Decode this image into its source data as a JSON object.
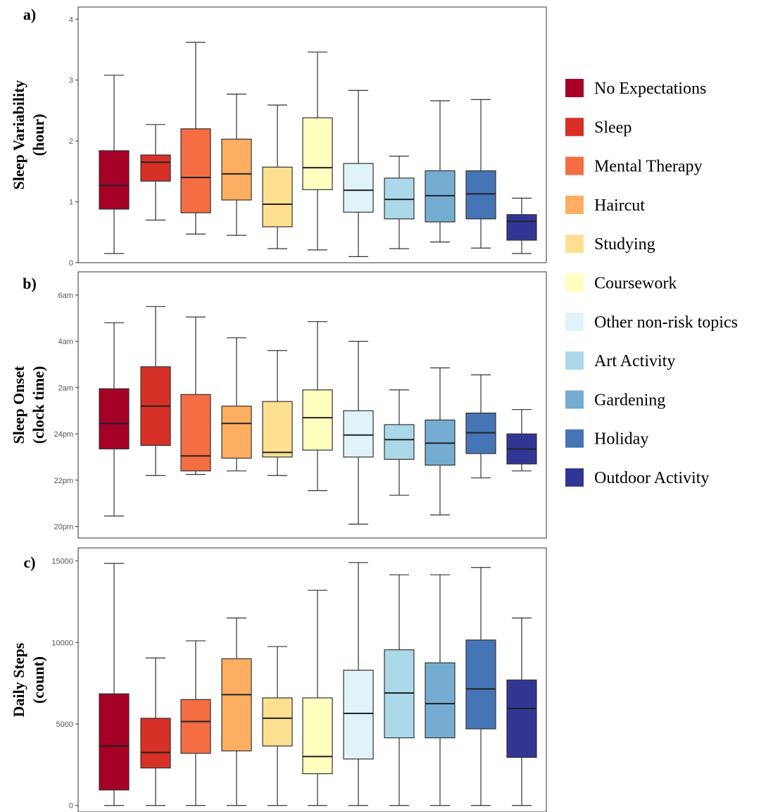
{
  "chart_data": [
    {
      "type": "box",
      "panel_label": "a)",
      "ylabel_lines": [
        "Sleep Variability",
        "(hour)"
      ],
      "ylim": [
        0,
        4.2
      ],
      "ticks": [
        {
          "value": 0,
          "label": "0"
        },
        {
          "value": 1,
          "label": "1"
        },
        {
          "value": 2,
          "label": "2"
        },
        {
          "value": 3,
          "label": "3"
        },
        {
          "value": 4,
          "label": "4"
        }
      ],
      "boxes": [
        {
          "category": "No Expectations",
          "min": 0.15,
          "q1": 0.88,
          "median": 1.27,
          "q3": 1.84,
          "max": 3.08
        },
        {
          "category": "Sleep",
          "min": 0.7,
          "q1": 1.34,
          "median": 1.65,
          "q3": 1.77,
          "max": 2.27
        },
        {
          "category": "Mental Therapy",
          "min": 0.47,
          "q1": 0.82,
          "median": 1.4,
          "q3": 2.2,
          "max": 3.62
        },
        {
          "category": "Haircut",
          "min": 0.45,
          "q1": 1.03,
          "median": 1.46,
          "q3": 2.03,
          "max": 2.77
        },
        {
          "category": "Studying",
          "min": 0.23,
          "q1": 0.59,
          "median": 0.96,
          "q3": 1.57,
          "max": 2.59
        },
        {
          "category": "Coursework",
          "min": 0.21,
          "q1": 1.2,
          "median": 1.56,
          "q3": 2.38,
          "max": 3.46
        },
        {
          "category": "Other non-risk topics",
          "min": 0.1,
          "q1": 0.83,
          "median": 1.19,
          "q3": 1.63,
          "max": 2.83
        },
        {
          "category": "Art Activity",
          "min": 0.23,
          "q1": 0.72,
          "median": 1.04,
          "q3": 1.39,
          "max": 1.75
        },
        {
          "category": "Gardening",
          "min": 0.34,
          "q1": 0.67,
          "median": 1.1,
          "q3": 1.51,
          "max": 2.66
        },
        {
          "category": "Holiday",
          "min": 0.24,
          "q1": 0.72,
          "median": 1.13,
          "q3": 1.51,
          "max": 2.68
        },
        {
          "category": "Outdoor Activity",
          "min": 0.15,
          "q1": 0.37,
          "median": 0.68,
          "q3": 0.79,
          "max": 1.06
        }
      ]
    },
    {
      "type": "box",
      "panel_label": "b)",
      "ylabel_lines": [
        "Sleep Onset",
        "(clock time)"
      ],
      "y_unit": "clock hour; values above 24 are after midnight",
      "ylim": [
        19.5,
        31.0
      ],
      "ticks": [
        {
          "value": 20,
          "label": "20pm"
        },
        {
          "value": 22,
          "label": "22pm"
        },
        {
          "value": 24,
          "label": "24pm"
        },
        {
          "value": 26,
          "label": "2am"
        },
        {
          "value": 28,
          "label": "4am"
        },
        {
          "value": 30,
          "label": "6am"
        }
      ],
      "boxes": [
        {
          "category": "No Expectations",
          "min": 20.45,
          "q1": 23.35,
          "median": 24.45,
          "q3": 25.95,
          "max": 28.8
        },
        {
          "category": "Sleep",
          "min": 22.2,
          "q1": 23.5,
          "median": 25.2,
          "q3": 26.9,
          "max": 29.5
        },
        {
          "category": "Mental Therapy",
          "min": 22.25,
          "q1": 22.4,
          "median": 23.05,
          "q3": 25.7,
          "max": 29.05
        },
        {
          "category": "Haircut",
          "min": 22.4,
          "q1": 22.95,
          "median": 24.45,
          "q3": 25.2,
          "max": 28.15
        },
        {
          "category": "Studying",
          "min": 22.2,
          "q1": 23.0,
          "median": 23.2,
          "q3": 25.4,
          "max": 27.6
        },
        {
          "category": "Coursework",
          "min": 21.55,
          "q1": 23.3,
          "median": 24.7,
          "q3": 25.9,
          "max": 28.85
        },
        {
          "category": "Other non-risk topics",
          "min": 20.1,
          "q1": 23.0,
          "median": 23.95,
          "q3": 25.0,
          "max": 28.0
        },
        {
          "category": "Art Activity",
          "min": 21.35,
          "q1": 22.9,
          "median": 23.75,
          "q3": 24.4,
          "max": 25.9
        },
        {
          "category": "Gardening",
          "min": 20.5,
          "q1": 22.65,
          "median": 23.6,
          "q3": 24.6,
          "max": 26.85
        },
        {
          "category": "Holiday",
          "min": 22.1,
          "q1": 23.15,
          "median": 24.05,
          "q3": 24.9,
          "max": 26.55
        },
        {
          "category": "Outdoor Activity",
          "min": 22.4,
          "q1": 22.7,
          "median": 23.35,
          "q3": 24.0,
          "max": 25.05
        }
      ]
    },
    {
      "type": "box",
      "panel_label": "c)",
      "ylabel_lines": [
        "Daily Steps",
        "(count)"
      ],
      "ylim": [
        -400,
        15800
      ],
      "ticks": [
        {
          "value": 0,
          "label": "0"
        },
        {
          "value": 5000,
          "label": "5000"
        },
        {
          "value": 10000,
          "label": "10000"
        },
        {
          "value": 15000,
          "label": "15000"
        }
      ],
      "boxes": [
        {
          "category": "No Expectations",
          "min": 0,
          "q1": 950,
          "median": 3650,
          "q3": 6850,
          "max": 14850
        },
        {
          "category": "Sleep",
          "min": 0,
          "q1": 2300,
          "median": 3250,
          "q3": 5350,
          "max": 9050
        },
        {
          "category": "Mental Therapy",
          "min": 0,
          "q1": 3200,
          "median": 5150,
          "q3": 6500,
          "max": 10100
        },
        {
          "category": "Haircut",
          "min": 0,
          "q1": 3350,
          "median": 6800,
          "q3": 9000,
          "max": 11500
        },
        {
          "category": "Studying",
          "min": 0,
          "q1": 3650,
          "median": 5350,
          "q3": 6600,
          "max": 9750
        },
        {
          "category": "Coursework",
          "min": 0,
          "q1": 1950,
          "median": 3000,
          "q3": 6600,
          "max": 13200
        },
        {
          "category": "Other non-risk topics",
          "min": 0,
          "q1": 2850,
          "median": 5650,
          "q3": 8300,
          "max": 14900
        },
        {
          "category": "Art Activity",
          "min": 0,
          "q1": 4150,
          "median": 6900,
          "q3": 9550,
          "max": 14150
        },
        {
          "category": "Gardening",
          "min": 0,
          "q1": 4150,
          "median": 6250,
          "q3": 8750,
          "max": 14150
        },
        {
          "category": "Holiday",
          "min": 0,
          "q1": 4700,
          "median": 7150,
          "q3": 10150,
          "max": 14600
        },
        {
          "category": "Outdoor Activity",
          "min": 0,
          "q1": 2950,
          "median": 5950,
          "q3": 7700,
          "max": 11500
        }
      ]
    }
  ],
  "legend": {
    "placement": "right",
    "items": [
      {
        "label": "No Expectations",
        "color": "#a50026"
      },
      {
        "label": "Sleep",
        "color": "#d73027"
      },
      {
        "label": "Mental Therapy",
        "color": "#f46d43"
      },
      {
        "label": "Haircut",
        "color": "#fdae61"
      },
      {
        "label": "Studying",
        "color": "#fee090"
      },
      {
        "label": "Coursework",
        "color": "#ffffbf"
      },
      {
        "label": "Other non-risk topics",
        "color": "#e0f3f8"
      },
      {
        "label": "Art Activity",
        "color": "#abd9e9"
      },
      {
        "label": "Gardening",
        "color": "#74add1"
      },
      {
        "label": "Holiday",
        "color": "#4575b4"
      },
      {
        "label": "Outdoor Activity",
        "color": "#313695"
      }
    ]
  }
}
